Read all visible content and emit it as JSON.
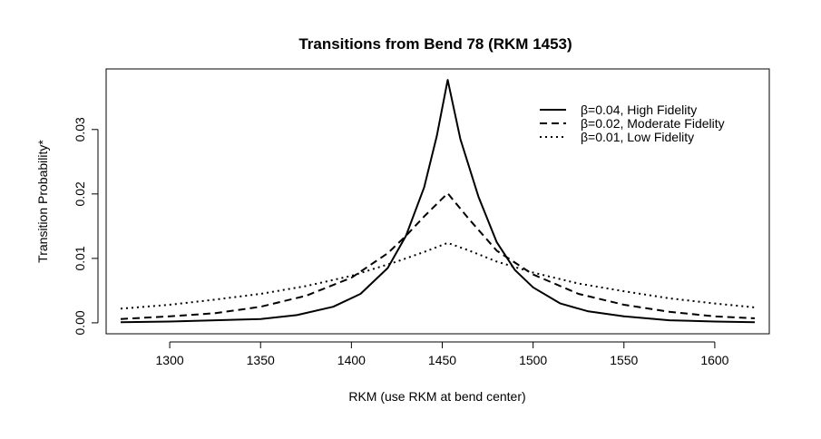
{
  "chart_data": {
    "type": "line",
    "title": "Transitions from Bend 78 (RKM 1453)",
    "xlabel": "RKM (use RKM at bend center)",
    "ylabel": "Transition Probability*",
    "xlim": [
      1265,
      1630
    ],
    "ylim": [
      -0.0017,
      0.0394
    ],
    "x_ticks": [
      1300,
      1350,
      1400,
      1450,
      1500,
      1550,
      1600
    ],
    "y_ticks": [
      0.0,
      0.01,
      0.02,
      0.03
    ],
    "x_tick_labels": [
      "1300",
      "1350",
      "1400",
      "1450",
      "1500",
      "1550",
      "1600"
    ],
    "y_tick_labels": [
      "0.00",
      "0.01",
      "0.02",
      "0.03"
    ],
    "grid": false,
    "legend_position": "top-right",
    "series": [
      {
        "name": "β=0.04, High Fidelity",
        "line_style": "solid",
        "x": [
          1273,
          1300,
          1325,
          1350,
          1370,
          1390,
          1405,
          1420,
          1430,
          1440,
          1447,
          1453,
          1460,
          1470,
          1480,
          1490,
          1500,
          1515,
          1530,
          1550,
          1575,
          1600,
          1622
        ],
        "y": [
          0.0001,
          0.0002,
          0.0004,
          0.0006,
          0.0012,
          0.0025,
          0.0045,
          0.0085,
          0.0135,
          0.021,
          0.029,
          0.0377,
          0.0285,
          0.0195,
          0.0125,
          0.0082,
          0.0055,
          0.003,
          0.0018,
          0.001,
          0.0004,
          0.0002,
          0.0001
        ]
      },
      {
        "name": "β=0.02, Moderate Fidelity",
        "line_style": "dashed",
        "x": [
          1273,
          1300,
          1325,
          1350,
          1375,
          1400,
          1420,
          1430,
          1440,
          1453,
          1465,
          1480,
          1500,
          1525,
          1550,
          1575,
          1600,
          1622
        ],
        "y": [
          0.0006,
          0.001,
          0.0015,
          0.0025,
          0.0042,
          0.007,
          0.0108,
          0.0135,
          0.0165,
          0.0201,
          0.016,
          0.0112,
          0.0075,
          0.0045,
          0.0028,
          0.0017,
          0.001,
          0.0007
        ]
      },
      {
        "name": "β=0.01, Low Fidelity",
        "line_style": "dotted",
        "x": [
          1273,
          1300,
          1325,
          1350,
          1375,
          1400,
          1425,
          1440,
          1453,
          1465,
          1480,
          1500,
          1525,
          1550,
          1575,
          1600,
          1622
        ],
        "y": [
          0.0022,
          0.0028,
          0.0036,
          0.0045,
          0.0057,
          0.0073,
          0.0095,
          0.011,
          0.0124,
          0.0112,
          0.0095,
          0.0078,
          0.0061,
          0.0049,
          0.0038,
          0.003,
          0.0024
        ]
      }
    ]
  }
}
